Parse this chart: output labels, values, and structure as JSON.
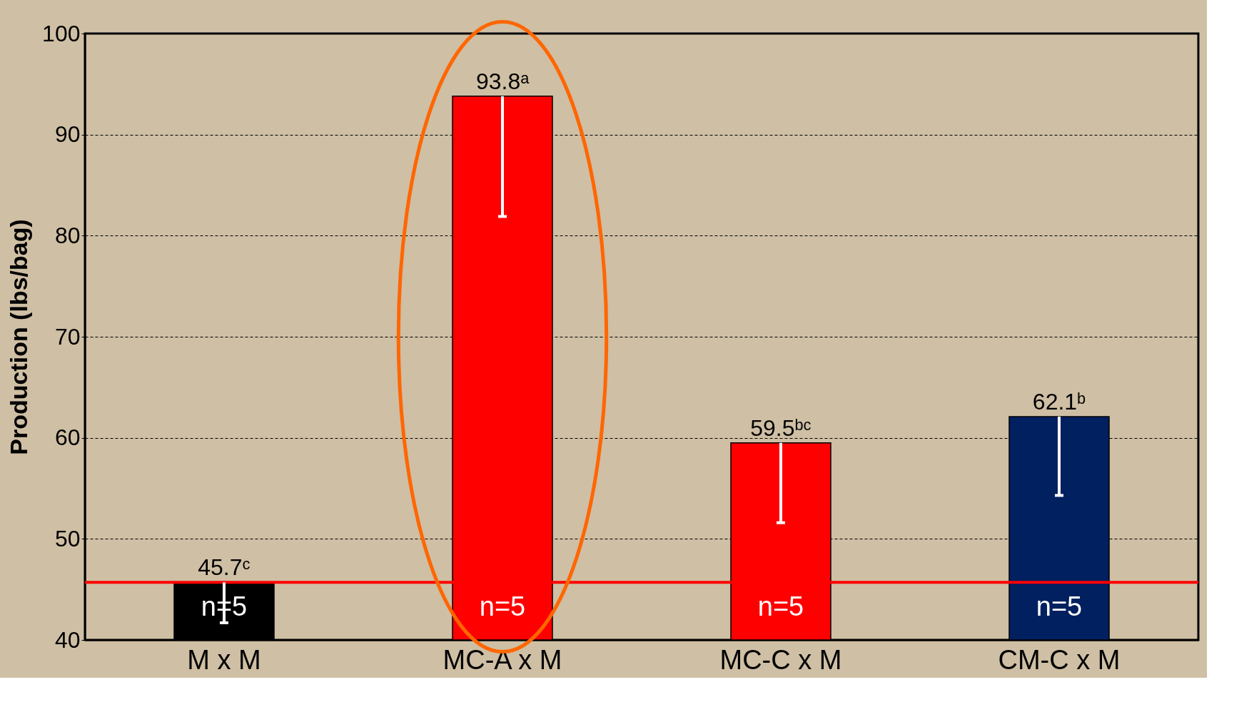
{
  "chart_data": {
    "type": "bar",
    "ylabel": "Production (lbs/bag)",
    "categories": [
      "M x M",
      "MC-A x M",
      "MC-C x M",
      "CM-C x M"
    ],
    "values": [
      45.7,
      93.8,
      59.5,
      62.1
    ],
    "colors": [
      "#000000",
      "#ff0000",
      "#ff0000",
      "#002060"
    ],
    "value_labels": [
      "45.7ᶜ",
      "93.8ᵃ",
      "59.5ᵇᶜ",
      "62.1ᵇ"
    ],
    "errors": [
      [
        41.7,
        45.7
      ],
      [
        81.9,
        93.8
      ],
      [
        51.6,
        59.5
      ],
      [
        54.3,
        62.1
      ]
    ],
    "ylim": [
      40,
      100
    ],
    "yticks": [
      40,
      50,
      60,
      70,
      80,
      90,
      100
    ],
    "grid": "y",
    "ref_lines": [
      {
        "axis": "y",
        "value": 45.7,
        "color": "#ff0000"
      }
    ],
    "annotations": [
      "n=5",
      "n=5",
      "n=5",
      "n=5"
    ]
  }
}
